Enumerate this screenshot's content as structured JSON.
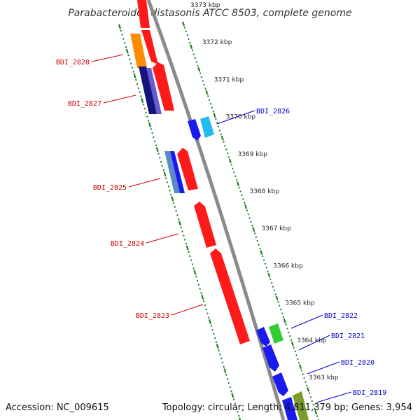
{
  "title": "Parabacteroides distasonis ATCC 8503, complete genome",
  "footer": {
    "accession": "Accession: NC_009615",
    "summary": "Topology: circular; Length: 4,811,379 bp; Genes: 3,954"
  },
  "colors": {
    "backbone": "#8a8a8a",
    "ticks": "#1a7f1a",
    "forward_label": "#cc0000",
    "reverse_label": "#0000cc",
    "red_gene": "#ff1a1a",
    "blue_gene": "#1a1aee",
    "navy_gene": "#14147a",
    "orange_gene": "#ff8c00",
    "slate_gene": "#6a5acd",
    "cyan_gene": "#22bbee",
    "steel_gene": "#5a8ac8",
    "green_gene": "#33cc33",
    "olive_gene": "#7a9a2a"
  },
  "ticks": [
    {
      "label": "3373 kbp",
      "kbp": 3373
    },
    {
      "label": "3372 kbp",
      "kbp": 3372
    },
    {
      "label": "3371 kbp",
      "kbp": 3371
    },
    {
      "label": "3370 kbp",
      "kbp": 3370
    },
    {
      "label": "3369 kbp",
      "kbp": 3369
    },
    {
      "label": "3368 kbp",
      "kbp": 3368
    },
    {
      "label": "3367 kbp",
      "kbp": 3367
    },
    {
      "label": "3366 kbp",
      "kbp": 3366
    },
    {
      "label": "3365 kbp",
      "kbp": 3365
    },
    {
      "label": "3364 kbp",
      "kbp": 3364
    },
    {
      "label": "3363 kbp",
      "kbp": 3363
    }
  ],
  "gene_labels": [
    {
      "name": "BDI_2828",
      "strand": "forward"
    },
    {
      "name": "BDI_2827",
      "strand": "forward"
    },
    {
      "name": "BDI_2826",
      "strand": "reverse"
    },
    {
      "name": "BDI_2825",
      "strand": "forward"
    },
    {
      "name": "BDI_2824",
      "strand": "forward"
    },
    {
      "name": "BDI_2823",
      "strand": "forward"
    },
    {
      "name": "BDI_2822",
      "strand": "reverse"
    },
    {
      "name": "BDI_2821",
      "strand": "reverse"
    },
    {
      "name": "BDI_2820",
      "strand": "reverse"
    },
    {
      "name": "BDI_2819",
      "strand": "reverse"
    }
  ]
}
